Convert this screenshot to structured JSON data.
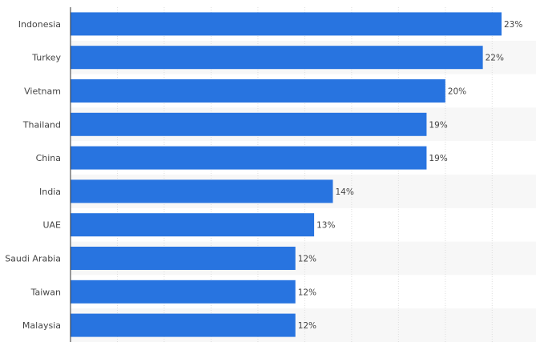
{
  "chart_data": {
    "type": "bar",
    "orientation": "horizontal",
    "categories": [
      "Indonesia",
      "Turkey",
      "Vietnam",
      "Thailand",
      "China",
      "India",
      "UAE",
      "Saudi Arabia",
      "Taiwan",
      "Malaysia"
    ],
    "values": [
      23,
      22,
      20,
      19,
      19,
      14,
      13,
      12,
      12,
      12
    ],
    "value_labels": [
      "23%",
      "22%",
      "20%",
      "19%",
      "19%",
      "14%",
      "13%",
      "12%",
      "12%",
      "12%"
    ],
    "xlim": [
      0,
      25
    ],
    "grid": true,
    "bar_color": "#2874e0",
    "label_color": "#444444",
    "band_color": "#f7f7f7",
    "grid_color": "#dddddd"
  }
}
